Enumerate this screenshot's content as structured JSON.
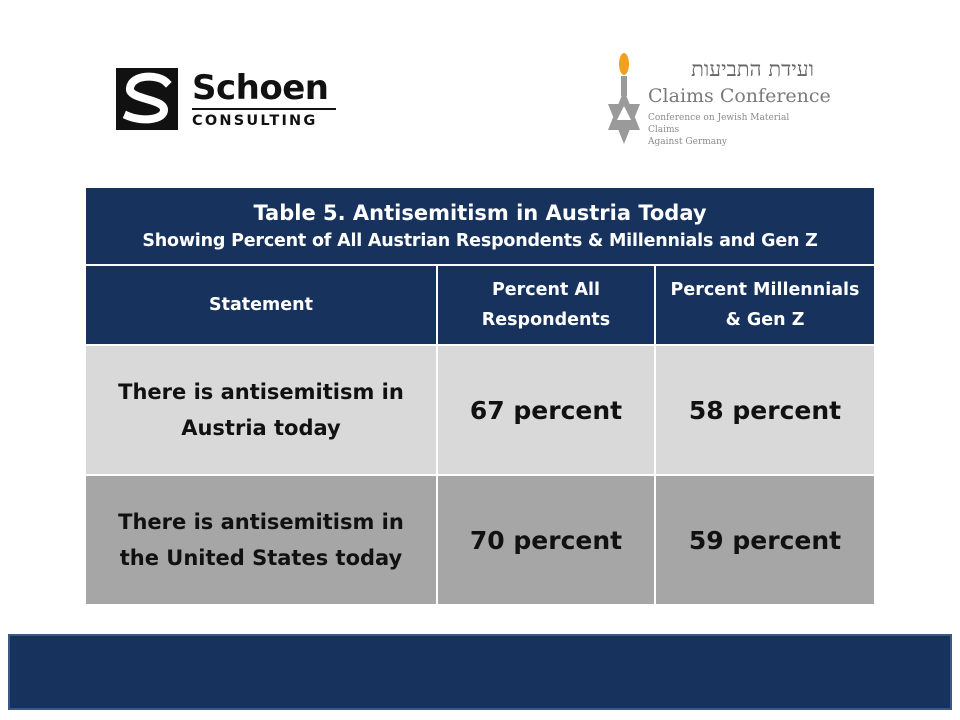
{
  "logos": {
    "schoen": {
      "name": "Schoen",
      "sub": "CONSULTING"
    },
    "claims": {
      "hebrew": "ועידת התביעות",
      "name": "Claims Conference",
      "sub_line1": "Conference on Jewish Material Claims",
      "sub_line2": "Against Germany"
    }
  },
  "table": {
    "title": "Table 5. Antisemitism in Austria Today",
    "subtitle": "Showing Percent of All Austrian Respondents & Millennials and Gen Z",
    "headers": {
      "statement": "Statement",
      "all_line1": "Percent All",
      "all_line2": "Respondents",
      "millennials_line1": "Percent Millennials",
      "millennials_line2": "& Gen Z"
    },
    "rows": [
      {
        "statement_line1": "There is antisemitism in",
        "statement_line2": "Austria today",
        "all": "67 percent",
        "millennials": "58 percent"
      },
      {
        "statement_line1": "There is antisemitism in",
        "statement_line2": "the United States today",
        "all": "70 percent",
        "millennials": "59 percent"
      }
    ]
  },
  "colors": {
    "navy": "#17335d",
    "row_light": "#d9d9d9",
    "row_dark": "#a6a6a6"
  }
}
